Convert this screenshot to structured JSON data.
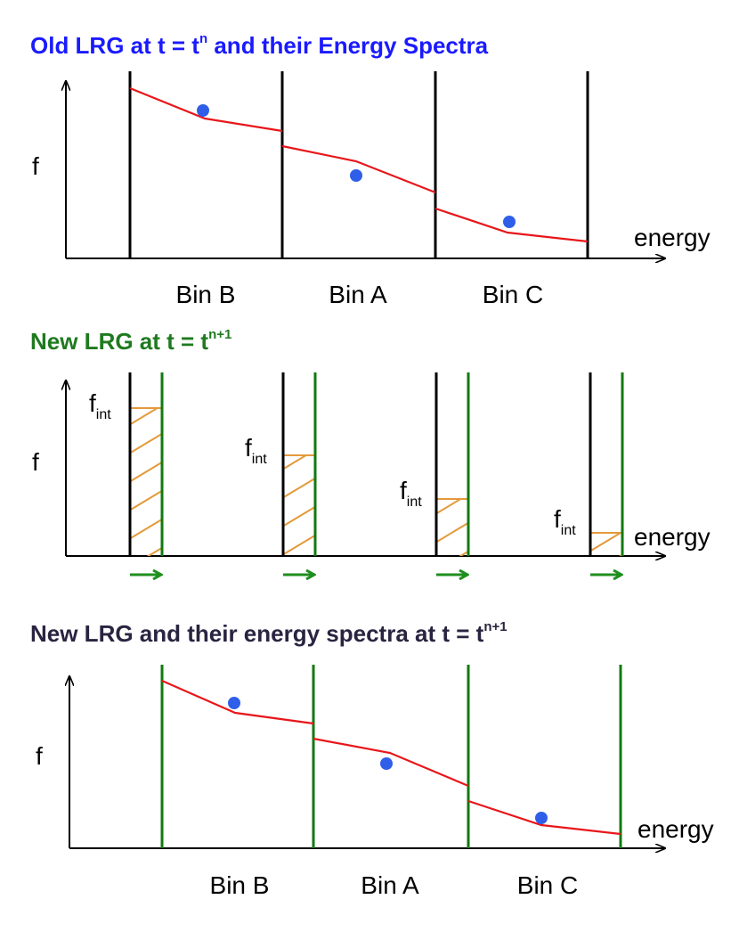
{
  "panel1": {
    "title_main": "Old LRG at t = t",
    "title_sup": "n",
    "title_rest": " and their Energy Spectra",
    "title_color": "#1a1aff",
    "ylabel": "f",
    "xlabel": "energy",
    "bins": [
      "Bin B",
      "Bin A",
      "Bin C"
    ]
  },
  "panel2": {
    "title_main": "New LRG at t = t",
    "title_sup": "n+1",
    "title_color": "#1f7a1f",
    "ylabel": "f",
    "xlabel": "energy",
    "fint_main": "f",
    "fint_sub": "int"
  },
  "panel3": {
    "title_main": "New LRG and their energy spectra at t = t",
    "title_sup": "n+1",
    "title_color": "#2a2440",
    "ylabel": "f",
    "xlabel": "energy",
    "bins": [
      "Bin B",
      "Bin A",
      "Bin C"
    ]
  },
  "colors": {
    "old_boundary": "#000000",
    "new_boundary": "#117a11",
    "spectrum": "#e8161a",
    "bin_average_dot": "#2f5fe8",
    "hatch": "#e39a3b",
    "arrow": "#1f8f1f"
  }
}
